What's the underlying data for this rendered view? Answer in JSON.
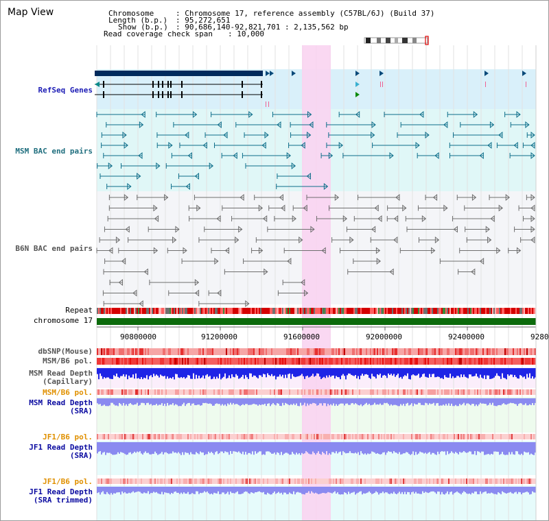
{
  "window": {
    "title": "Map View"
  },
  "info": {
    "chromosome_label": "Chromosome",
    "chromosome_value": ": Chromosome 17, reference assembly (C57BL/6J) (Build 37)",
    "length_label": "Length (b.p.)",
    "length_value": ": 95,272,651",
    "show_label": "Show (b.p.)",
    "show_value": ": 90,686,140-92,821,701 : 2,135,562 bp",
    "coverage_label": "Read coverage check span",
    "coverage_value": ": 10,000"
  },
  "tracks": {
    "refseq": "RefSeq Genes",
    "msm_bac": "MSM BAC end pairs",
    "b6n_bac": "B6N BAC end pairs",
    "repeat": "Repeat",
    "chromosome": "chromosome 17",
    "dbsnp": "dbSNP(Mouse)",
    "msm_b6_pol": "MSM/B6 pol.",
    "msm_depth_cap_1": "MSM Read Depth",
    "msm_depth_cap_2": "(Capillary)",
    "msm_b6_pol_2": "MSM/B6 pol.",
    "msm_depth_sra_1": "MSM Read Depth",
    "msm_depth_sra_2": "(SRA)",
    "jf1_b6_pol": "JF1/B6 pol.",
    "jf1_depth_sra_1": "JF1 Read Depth",
    "jf1_depth_sra_2": "(SRA)",
    "jf1_b6_pol_2": "JF1/B6 pol.",
    "jf1_depth_trim_1": "JF1 Read Depth",
    "jf1_depth_trim_2": "(SRA trimmed)"
  },
  "axis": {
    "ticks": [
      "90800000",
      "91200000",
      "91600000",
      "92000000",
      "92400000",
      "9280"
    ]
  },
  "colors": {
    "gene_navy": "#002a5c",
    "refseq_bg": "#d9f0fa",
    "msm_bac": "#0d6e8a",
    "b6n_bac": "#6e6e6e",
    "highlight": "#f9d4f1",
    "chromosome": "#0c6b0c",
    "depth_blue": "#1e24e6",
    "depth_lavender": "#8a8af0",
    "label_navy": "#0a0aa0",
    "label_teal": "#1f6e7e",
    "label_orange": "#e09000"
  }
}
